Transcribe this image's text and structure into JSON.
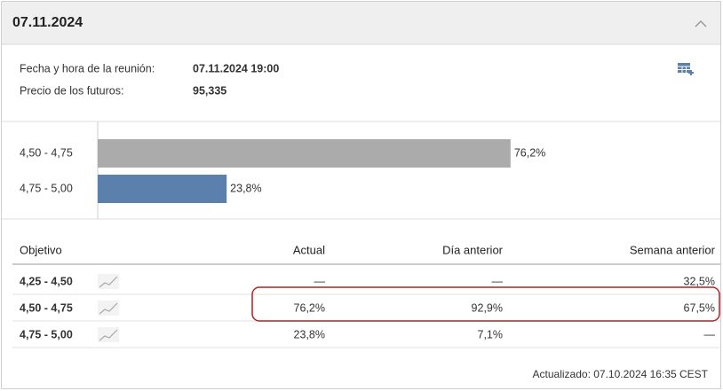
{
  "header": {
    "title": "07.11.2024"
  },
  "info": [
    {
      "label": "Fecha y hora de la reunión:",
      "value": "07.11.2024 19:00"
    },
    {
      "label": "Precio de los futuros:",
      "value": "95,335"
    }
  ],
  "chart_data": {
    "type": "bar",
    "orientation": "horizontal",
    "categories": [
      "4,50 - 4,75",
      "4,75 - 5,00"
    ],
    "values": [
      76.2,
      23.8
    ],
    "value_labels": [
      "76,2%",
      "23,8%"
    ],
    "colors": [
      "#ababab",
      "#5b80ac"
    ],
    "xlim": [
      0,
      100
    ]
  },
  "table": {
    "columns": [
      "Objetivo",
      "Actual",
      "Día anterior",
      "Semana anterior"
    ],
    "rows": [
      [
        "4,25 - 4,50",
        "—",
        "—",
        "32,5%"
      ],
      [
        "4,50 - 4,75",
        "76,2%",
        "92,9%",
        "67,5%"
      ],
      [
        "4,75 - 5,00",
        "23,8%",
        "7,1%",
        "—"
      ]
    ]
  },
  "footer": "Actualizado: 07.10.2024 16:35 CEST"
}
